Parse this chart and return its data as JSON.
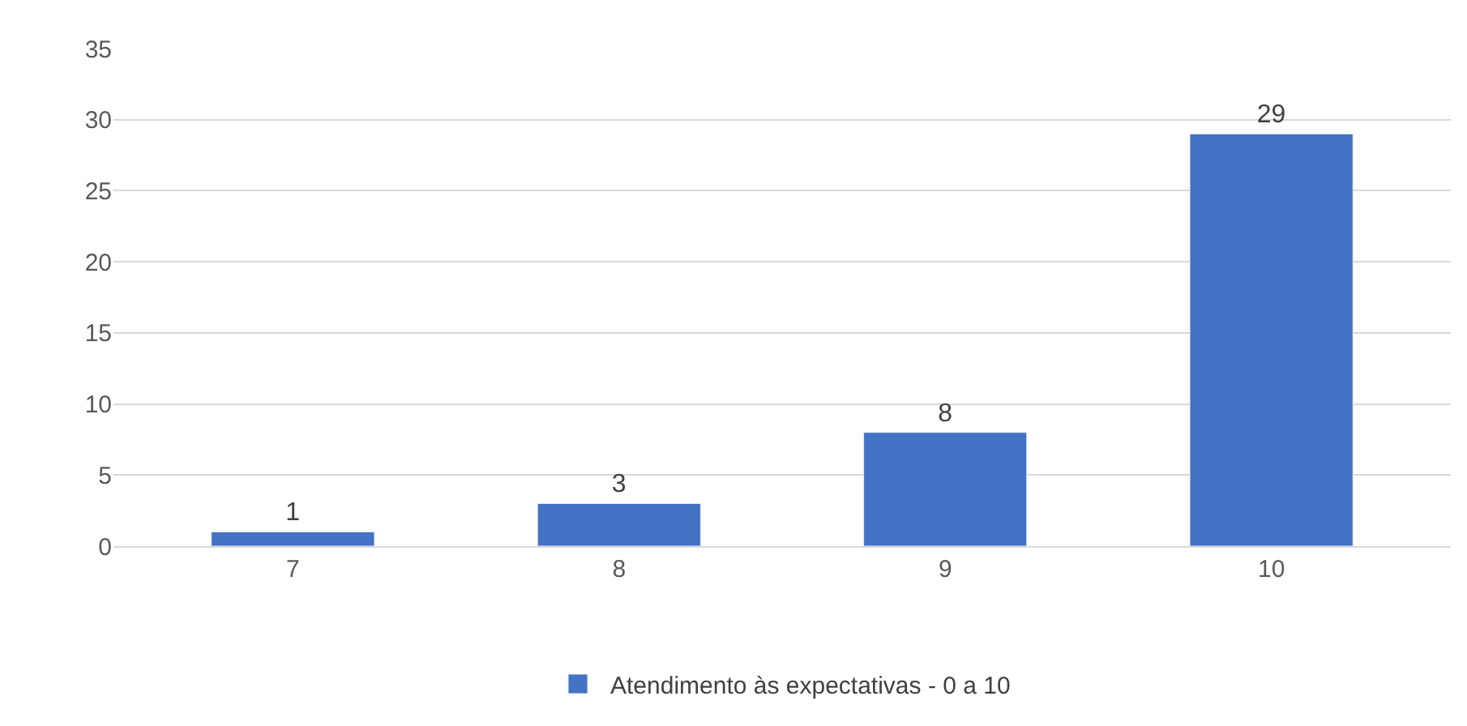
{
  "chart_data": {
    "type": "bar",
    "categories": [
      "7",
      "8",
      "9",
      "10"
    ],
    "series": [
      {
        "name": "Atendimento às expectativas - 0 a 10",
        "color": "#4472c4",
        "values": [
          1,
          3,
          8,
          29
        ]
      }
    ],
    "ylim": [
      0,
      35
    ],
    "yticks": [
      0,
      5,
      10,
      15,
      20,
      25,
      30,
      35
    ],
    "grid": "y",
    "legend": "bottom",
    "data_labels": true
  }
}
